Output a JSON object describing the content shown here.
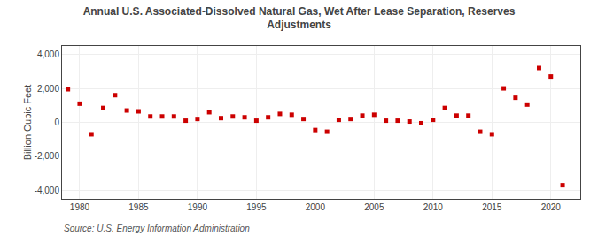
{
  "chart_data": {
    "type": "scatter",
    "title": "Annual U.S. Associated-Dissolved Natural Gas, Wet After Lease Separation, Reserves\nAdjustments",
    "ylabel": "Billion Cubic Feet",
    "annotations": [
      "Source: U.S. Energy Information Administration"
    ],
    "x": [
      1979,
      1980,
      1981,
      1982,
      1983,
      1984,
      1985,
      1986,
      1987,
      1988,
      1989,
      1990,
      1991,
      1992,
      1993,
      1994,
      1995,
      1996,
      1997,
      1998,
      1999,
      2000,
      2001,
      2002,
      2003,
      2004,
      2005,
      2006,
      2007,
      2008,
      2009,
      2010,
      2011,
      2012,
      2013,
      2014,
      2015,
      2016,
      2017,
      2018,
      2019,
      2020,
      2021
    ],
    "values": [
      1950,
      1100,
      -700,
      850,
      1600,
      700,
      650,
      350,
      350,
      350,
      100,
      200,
      600,
      250,
      350,
      300,
      100,
      300,
      500,
      450,
      200,
      -450,
      -550,
      150,
      200,
      400,
      450,
      100,
      100,
      50,
      -50,
      150,
      850,
      400,
      400,
      -550,
      -700,
      2000,
      1450,
      1050,
      3200,
      2700,
      -3700
    ],
    "color": "#cc0000",
    "marker": "square",
    "xlim": [
      1978.5,
      2022.5
    ],
    "ylim": [
      -4500,
      4500
    ],
    "xticks": [
      1980,
      1985,
      1990,
      1995,
      2000,
      2005,
      2010,
      2015,
      2020
    ],
    "yticks": [
      {
        "value": -4000,
        "label": "-4,000"
      },
      {
        "value": -2000,
        "label": "-2,000"
      },
      0,
      {
        "value": 2000,
        "label": "2,000"
      },
      {
        "value": 4000,
        "label": "4,000"
      }
    ],
    "grid": true
  }
}
